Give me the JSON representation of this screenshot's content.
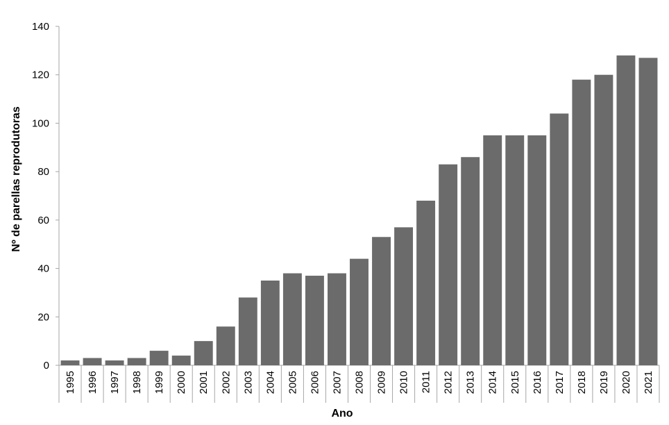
{
  "chart_data": {
    "type": "bar",
    "x_label": "Ano",
    "y_label": "Nº de parellas reprodutoras",
    "categories": [
      "1995",
      "1996",
      "1997",
      "1998",
      "1999",
      "2000",
      "2001",
      "2002",
      "2003",
      "2004",
      "2005",
      "2006",
      "2007",
      "2008",
      "2009",
      "2010",
      "2011",
      "2012",
      "2013",
      "2014",
      "2015",
      "2016",
      "2017",
      "2018",
      "2019",
      "2020",
      "2021"
    ],
    "values": [
      2,
      3,
      2,
      3,
      6,
      4,
      10,
      16,
      28,
      35,
      38,
      37,
      38,
      44,
      53,
      57,
      68,
      83,
      86,
      95,
      95,
      95,
      104,
      118,
      120,
      128,
      127
    ],
    "color": "#6b6b6b",
    "ylim": [
      0,
      140
    ],
    "yticks": [
      0,
      20,
      40,
      60,
      80,
      100,
      120,
      140
    ],
    "grid": false
  }
}
